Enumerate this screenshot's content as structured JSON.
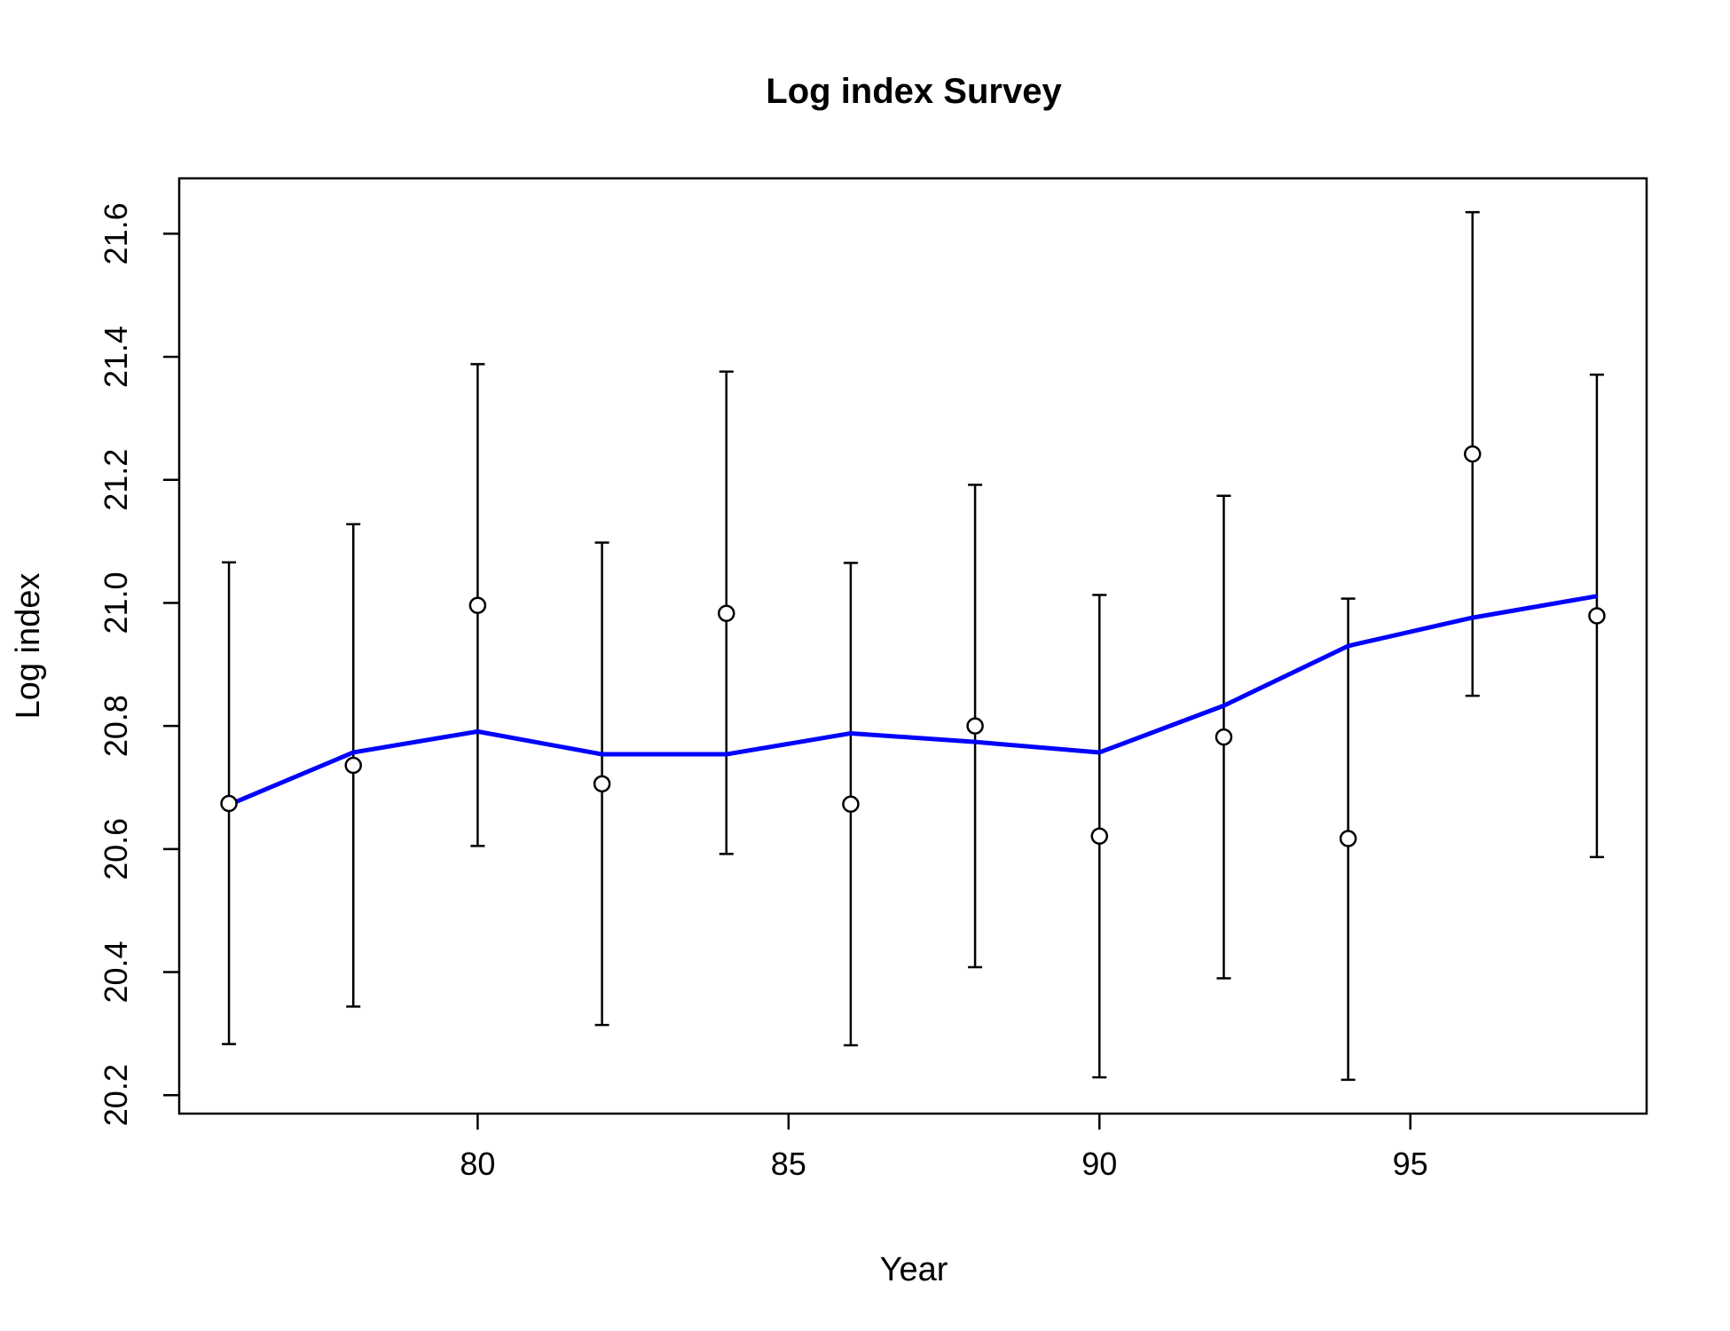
{
  "chart_data": {
    "type": "scatter",
    "title": "Log index Survey",
    "xlabel": "Year",
    "ylabel": "Log index",
    "xlim": [
      75.2,
      98.8
    ],
    "ylim": [
      20.17,
      21.69
    ],
    "x_ticks": [
      80,
      85,
      90,
      95
    ],
    "x_tick_labels": [
      "80",
      "85",
      "90",
      "95"
    ],
    "y_ticks": [
      20.2,
      20.4,
      20.6,
      20.8,
      21.0,
      21.2,
      21.4,
      21.6
    ],
    "y_tick_labels": [
      "20.2",
      "20.4",
      "20.6",
      "20.8",
      "21.0",
      "21.2",
      "21.4",
      "21.6"
    ],
    "grid": false,
    "x": [
      76,
      78,
      80,
      82,
      84,
      86,
      88,
      90,
      92,
      94,
      96,
      98
    ],
    "series": [
      {
        "type": "points_with_errorbars",
        "values": [
          20.674,
          20.736,
          20.996,
          20.706,
          20.983,
          20.673,
          20.8,
          20.621,
          20.782,
          20.617,
          21.242,
          20.979
        ],
        "lower": [
          20.283,
          20.344,
          20.605,
          20.314,
          20.592,
          20.281,
          20.408,
          20.229,
          20.39,
          20.225,
          20.849,
          20.587
        ],
        "upper": [
          21.066,
          21.128,
          21.388,
          21.098,
          21.376,
          21.065,
          21.192,
          21.013,
          21.174,
          21.007,
          21.635,
          21.371
        ],
        "color": "#000000"
      },
      {
        "type": "line",
        "values": [
          20.672,
          20.757,
          20.791,
          20.754,
          20.754,
          20.788,
          20.774,
          20.757,
          20.833,
          20.93,
          20.976,
          21.011
        ],
        "color": "#0000FF"
      }
    ]
  }
}
